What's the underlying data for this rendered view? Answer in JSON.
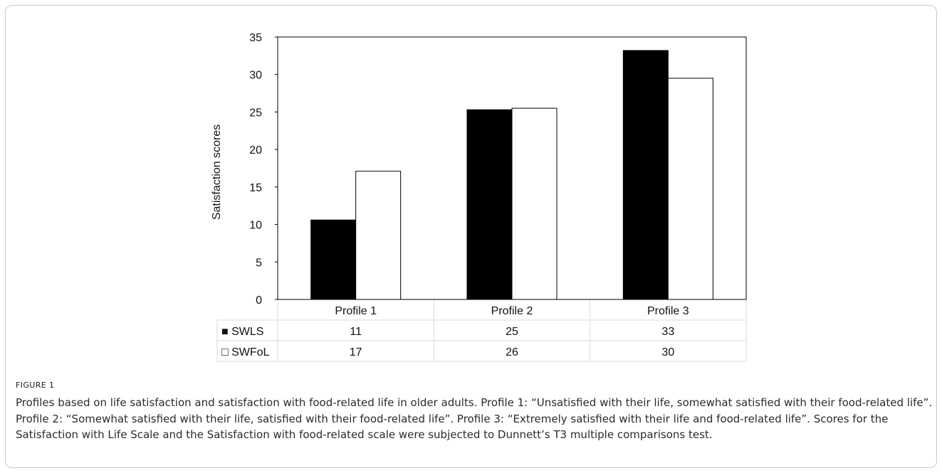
{
  "figure": {
    "label": "FIGURE 1",
    "caption": "Profiles based on life satisfaction and satisfaction with food-related life in older adults. Profile 1: “Unsatisfied with their life, somewhat satisfied with their food-related life”. Profile 2: “Somewhat satisfied with their life, satisfied with their food-related life”. Profile 3: “Extremely satisfied with their life and food-related life”. Scores for the Satisfaction with Life Scale and the Satisfaction with food-related scale were subjected to Dunnett’s T3 multiple comparisons test."
  },
  "chart_data": {
    "type": "bar",
    "title": "",
    "xlabel": "",
    "ylabel": "Satisfaction scores",
    "ylim": [
      0,
      35
    ],
    "yticks": [
      0,
      5,
      10,
      15,
      20,
      25,
      30,
      35
    ],
    "grid": false,
    "legend_placement": "data table below chart",
    "categories": [
      "Profile 1",
      "Profile 2",
      "Profile 3"
    ],
    "series": [
      {
        "name": "SWLS",
        "marker": "■",
        "values": [
          10.6,
          25.3,
          33.2
        ],
        "table_values": [
          "11",
          "25",
          "33"
        ],
        "color": "#000000"
      },
      {
        "name": "SWFoL",
        "marker": "□",
        "values": [
          17.1,
          25.5,
          29.5
        ],
        "table_values": [
          "17",
          "26",
          "30"
        ],
        "color": "#ffffff"
      }
    ]
  }
}
